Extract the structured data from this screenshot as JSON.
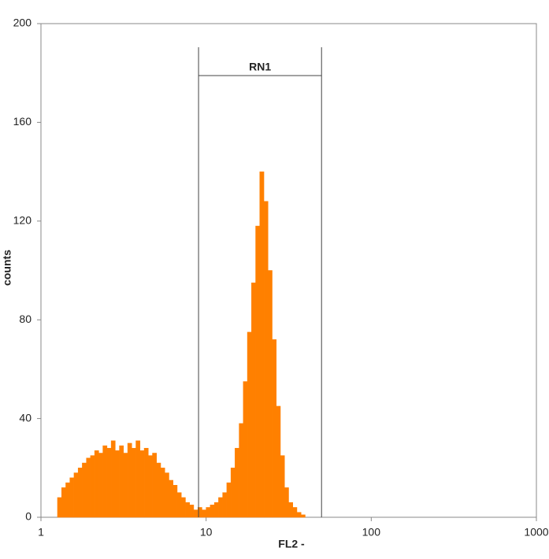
{
  "chart_data": {
    "type": "histogram",
    "xlabel": "FL2  -",
    "ylabel": "counts",
    "xlog": true,
    "xlim": [
      1,
      1000
    ],
    "xticks": [
      1,
      10,
      100,
      1000
    ],
    "ylim": [
      0,
      200
    ],
    "yticks": [
      0,
      40,
      80,
      120,
      160,
      200
    ],
    "color": "#ff8000",
    "bins": [
      1.259,
      1.334,
      1.413,
      1.496,
      1.585,
      1.679,
      1.778,
      1.884,
      1.995,
      2.113,
      2.239,
      2.371,
      2.512,
      2.661,
      2.818,
      2.985,
      3.162,
      3.35,
      3.548,
      3.758,
      3.981,
      4.217,
      4.467,
      4.732,
      5.012,
      5.309,
      5.623,
      5.957,
      6.31,
      6.683,
      7.079,
      7.499,
      7.943,
      8.414,
      8.913,
      9.441,
      10,
      10.59,
      11.22,
      11.89,
      12.59,
      13.34,
      14.13,
      14.96,
      15.85,
      16.79,
      17.78,
      18.84,
      19.95,
      21.13,
      22.39,
      23.71,
      25.12,
      26.61,
      28.18,
      29.85,
      31.62,
      33.5,
      35.48,
      37.58,
      39.81
    ],
    "values": [
      8,
      12,
      14,
      16,
      18,
      20,
      22,
      24,
      25,
      27,
      26,
      29,
      28,
      31,
      27,
      29,
      26,
      30,
      28,
      31,
      27,
      28,
      25,
      26,
      22,
      20,
      18,
      15,
      13,
      10,
      8,
      6,
      5,
      3,
      4,
      3,
      4,
      5,
      6,
      8,
      10,
      14,
      20,
      28,
      38,
      55,
      75,
      95,
      118,
      140,
      128,
      100,
      72,
      45,
      25,
      12,
      6,
      4,
      2,
      1
    ],
    "gate": {
      "label": "RN1",
      "range": [
        9,
        50
      ]
    }
  }
}
